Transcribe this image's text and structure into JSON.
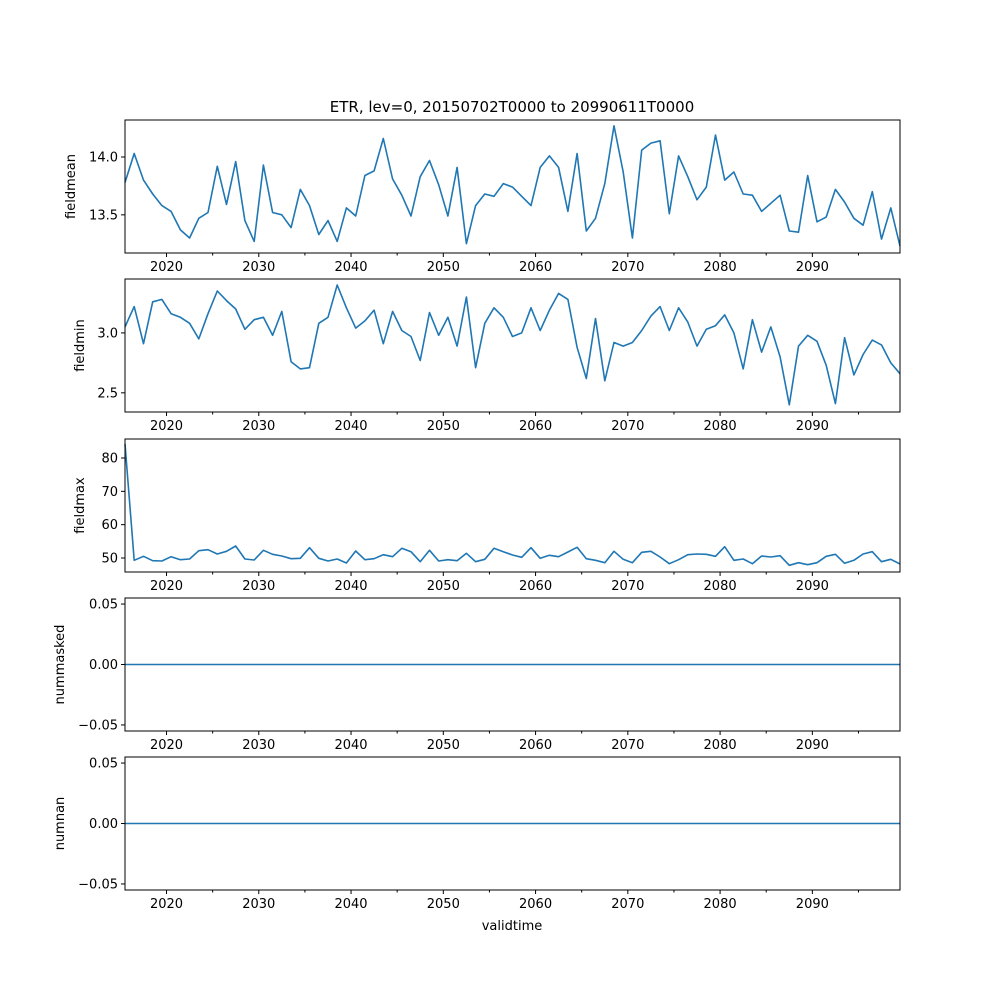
{
  "chart_data": {
    "type": "line",
    "title": "ETR, lev=0, 20150702T0000 to 20990611T0000",
    "xlabel": "validtime",
    "xlim": [
      2015.5,
      2099.5
    ],
    "x_start": 2015.5,
    "x_step": 1,
    "x_major_ticks": [
      2020,
      2030,
      2040,
      2050,
      2060,
      2070,
      2080,
      2090
    ],
    "x_minor_ticks": [
      2025,
      2035,
      2045,
      2055,
      2065,
      2075,
      2085,
      2095
    ],
    "x_tick_labels": [
      "2020",
      "2030",
      "2040",
      "2050",
      "2060",
      "2070",
      "2080",
      "2090"
    ],
    "line_color": "#1f77b4",
    "grid": false,
    "panels": [
      {
        "ylabel": "fieldmean",
        "ylim": [
          13.17,
          14.32
        ],
        "yticks": [
          13.5,
          14.0
        ],
        "ytick_labels": [
          "13.5",
          "14.0"
        ],
        "values": [
          13.78,
          14.03,
          13.8,
          13.68,
          13.58,
          13.53,
          13.37,
          13.3,
          13.47,
          13.52,
          13.92,
          13.59,
          13.96,
          13.45,
          13.27,
          13.93,
          13.52,
          13.5,
          13.39,
          13.72,
          13.58,
          13.33,
          13.45,
          13.27,
          13.56,
          13.49,
          13.84,
          13.88,
          14.16,
          13.81,
          13.67,
          13.49,
          13.83,
          13.97,
          13.76,
          13.49,
          13.91,
          13.25,
          13.58,
          13.68,
          13.66,
          13.77,
          13.74,
          13.66,
          13.58,
          13.91,
          14.01,
          13.91,
          13.53,
          14.03,
          13.36,
          13.47,
          13.77,
          14.27,
          13.87,
          13.3,
          14.06,
          14.12,
          14.14,
          13.51,
          14.01,
          13.83,
          13.63,
          13.74,
          14.19,
          13.8,
          13.87,
          13.68,
          13.67,
          13.53,
          13.6,
          13.67,
          13.36,
          13.35,
          13.84,
          13.44,
          13.48,
          13.72,
          13.61,
          13.47,
          13.41,
          13.7,
          13.29,
          13.56,
          13.23
        ]
      },
      {
        "ylabel": "fieldmin",
        "ylim": [
          2.34,
          3.45
        ],
        "yticks": [
          2.5,
          3.0
        ],
        "ytick_labels": [
          "2.5",
          "3.0"
        ],
        "values": [
          3.05,
          3.22,
          2.91,
          3.26,
          3.28,
          3.16,
          3.13,
          3.08,
          2.95,
          3.16,
          3.35,
          3.27,
          3.2,
          3.03,
          3.11,
          3.13,
          2.98,
          3.18,
          2.76,
          2.7,
          2.71,
          3.08,
          3.13,
          3.4,
          3.21,
          3.04,
          3.1,
          3.19,
          2.91,
          3.18,
          3.02,
          2.97,
          2.77,
          3.17,
          2.98,
          3.13,
          2.89,
          3.3,
          2.71,
          3.08,
          3.21,
          3.13,
          2.97,
          3.0,
          3.21,
          3.02,
          3.19,
          3.33,
          3.28,
          2.88,
          2.62,
          3.12,
          2.6,
          2.92,
          2.89,
          2.92,
          3.02,
          3.14,
          3.22,
          3.02,
          3.21,
          3.09,
          2.89,
          3.03,
          3.06,
          3.15,
          3.0,
          2.7,
          3.11,
          2.84,
          3.05,
          2.8,
          2.4,
          2.89,
          2.98,
          2.93,
          2.73,
          2.41,
          2.96,
          2.65,
          2.82,
          2.94,
          2.9,
          2.75,
          2.66
        ]
      },
      {
        "ylabel": "fieldmax",
        "ylim": [
          45.8,
          85.7
        ],
        "yticks": [
          50,
          60,
          70,
          80
        ],
        "ytick_labels": [
          "50",
          "60",
          "70",
          "80"
        ],
        "values": [
          84.2,
          49.3,
          50.5,
          49.2,
          49.1,
          50.4,
          49.5,
          49.7,
          52.2,
          52.5,
          51.2,
          52.0,
          53.6,
          49.7,
          49.4,
          52.3,
          51.1,
          50.6,
          49.8,
          49.9,
          53.1,
          49.9,
          49.1,
          49.7,
          48.5,
          52.1,
          49.5,
          49.8,
          51.0,
          50.4,
          52.9,
          51.9,
          48.9,
          52.3,
          49.1,
          49.5,
          49.2,
          51.4,
          48.9,
          49.6,
          52.9,
          51.9,
          50.9,
          50.2,
          53.1,
          49.9,
          50.8,
          50.4,
          51.8,
          53.2,
          49.8,
          49.3,
          48.6,
          52.0,
          49.6,
          48.6,
          51.7,
          52.0,
          50.3,
          48.3,
          49.5,
          51.0,
          51.2,
          51.1,
          50.5,
          53.4,
          49.3,
          49.7,
          48.3,
          50.6,
          50.3,
          50.7,
          47.8,
          48.6,
          48.0,
          48.6,
          50.5,
          51.1,
          48.4,
          49.3,
          51.2,
          51.9,
          48.9,
          49.6,
          48.2
        ]
      },
      {
        "ylabel": "nummasked",
        "ylim": [
          -0.055,
          0.055
        ],
        "yticks": [
          -0.05,
          0.0,
          0.05
        ],
        "ytick_labels": [
          "−0.05",
          "0.00",
          "0.05"
        ],
        "values": [
          0,
          0
        ]
      },
      {
        "ylabel": "numnan",
        "ylim": [
          -0.055,
          0.055
        ],
        "yticks": [
          -0.05,
          0.0,
          0.05
        ],
        "ytick_labels": [
          "−0.05",
          "0.00",
          "0.05"
        ],
        "values": [
          0,
          0
        ]
      }
    ]
  }
}
